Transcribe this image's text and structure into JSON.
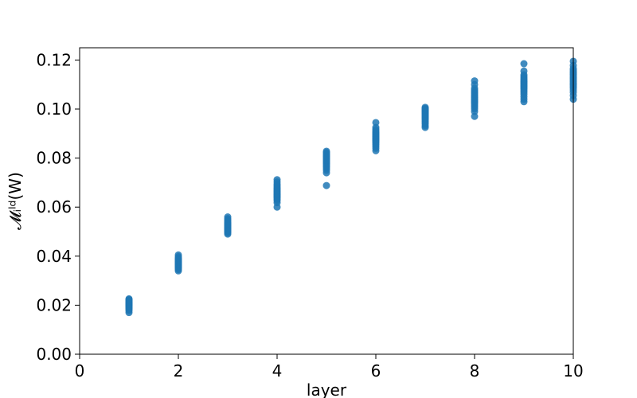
{
  "chart_data": {
    "type": "scatter",
    "title": "",
    "xlabel": "layer",
    "ylabel": "𝓜ᵢˡᵈ(W)",
    "xlim": [
      0,
      10
    ],
    "ylim": [
      0,
      0.125
    ],
    "xticks": [
      0,
      2,
      4,
      6,
      8,
      10
    ],
    "xtick_labels": [
      "0",
      "2",
      "4",
      "6",
      "8",
      "10"
    ],
    "yticks": [
      0.0,
      0.02,
      0.04,
      0.06,
      0.08,
      0.1,
      0.12
    ],
    "ytick_labels": [
      "0.00",
      "0.02",
      "0.04",
      "0.06",
      "0.08",
      "0.10",
      "0.12"
    ],
    "grid": false,
    "marker_color": "#1f77b4",
    "series": [
      {
        "x": [
          1,
          1,
          1,
          1,
          1,
          1,
          1,
          1,
          1,
          1,
          1,
          1,
          1,
          1,
          1,
          1,
          1,
          1,
          1,
          1,
          2,
          2,
          2,
          2,
          2,
          2,
          2,
          2,
          2,
          2,
          2,
          2,
          2,
          2,
          2,
          2,
          2,
          2,
          2,
          2,
          3,
          3,
          3,
          3,
          3,
          3,
          3,
          3,
          3,
          3,
          3,
          3,
          3,
          3,
          3,
          3,
          3,
          3,
          3,
          3,
          4,
          4,
          4,
          4,
          4,
          4,
          4,
          4,
          4,
          4,
          4,
          4,
          4,
          4,
          4,
          4,
          4,
          4,
          4,
          4,
          5,
          5,
          5,
          5,
          5,
          5,
          5,
          5,
          5,
          5,
          5,
          5,
          5,
          5,
          5,
          5,
          5,
          5,
          5,
          5,
          6,
          6,
          6,
          6,
          6,
          6,
          6,
          6,
          6,
          6,
          6,
          6,
          6,
          6,
          6,
          6,
          6,
          6,
          6,
          6,
          7,
          7,
          7,
          7,
          7,
          7,
          7,
          7,
          7,
          7,
          7,
          7,
          7,
          7,
          7,
          7,
          7,
          7,
          7,
          7,
          8,
          8,
          8,
          8,
          8,
          8,
          8,
          8,
          8,
          8,
          8,
          8,
          8,
          8,
          8,
          8,
          8,
          8,
          8,
          8,
          9,
          9,
          9,
          9,
          9,
          9,
          9,
          9,
          9,
          9,
          9,
          9,
          9,
          9,
          9,
          9,
          9,
          9,
          9,
          9,
          10,
          10,
          10,
          10,
          10,
          10,
          10,
          10,
          10,
          10,
          10,
          10,
          10,
          10,
          10,
          10,
          10,
          10,
          10,
          10
        ],
        "y": [
          0.017,
          0.0178,
          0.0183,
          0.0187,
          0.019,
          0.0193,
          0.0196,
          0.0199,
          0.0201,
          0.0203,
          0.0205,
          0.0207,
          0.0209,
          0.0211,
          0.0213,
          0.0215,
          0.0218,
          0.022,
          0.0223,
          0.0226,
          0.034,
          0.0345,
          0.035,
          0.0353,
          0.0356,
          0.0359,
          0.0362,
          0.0365,
          0.0367,
          0.037,
          0.0372,
          0.0375,
          0.0377,
          0.038,
          0.0383,
          0.0386,
          0.0389,
          0.0393,
          0.0398,
          0.0405,
          0.049,
          0.0495,
          0.0499,
          0.0502,
          0.0505,
          0.0508,
          0.0511,
          0.0514,
          0.0517,
          0.052,
          0.0523,
          0.0526,
          0.0529,
          0.0532,
          0.0535,
          0.0539,
          0.0543,
          0.0548,
          0.0553,
          0.056,
          0.06,
          0.0618,
          0.0627,
          0.0632,
          0.0637,
          0.0641,
          0.0645,
          0.0649,
          0.0652,
          0.0656,
          0.066,
          0.0664,
          0.0668,
          0.0672,
          0.0677,
          0.0682,
          0.0688,
          0.0695,
          0.0703,
          0.0712,
          0.0688,
          0.074,
          0.075,
          0.0757,
          0.0763,
          0.0768,
          0.0773,
          0.0777,
          0.0781,
          0.0785,
          0.0789,
          0.0793,
          0.0797,
          0.0801,
          0.0805,
          0.0809,
          0.0813,
          0.0818,
          0.0823,
          0.0828,
          0.083,
          0.084,
          0.0848,
          0.0855,
          0.0861,
          0.0866,
          0.087,
          0.0874,
          0.0878,
          0.0882,
          0.0886,
          0.089,
          0.0894,
          0.0898,
          0.0902,
          0.0906,
          0.0911,
          0.0917,
          0.0925,
          0.0945,
          0.0925,
          0.0932,
          0.0939,
          0.0945,
          0.095,
          0.0955,
          0.096,
          0.0964,
          0.0968,
          0.0972,
          0.0976,
          0.098,
          0.0983,
          0.0987,
          0.099,
          0.0994,
          0.0997,
          0.1,
          0.1003,
          0.1007,
          0.097,
          0.099,
          0.1,
          0.1008,
          0.1015,
          0.1021,
          0.1027,
          0.1032,
          0.1037,
          0.1042,
          0.1047,
          0.1052,
          0.1057,
          0.1062,
          0.1067,
          0.1072,
          0.1078,
          0.1085,
          0.11,
          0.1115,
          0.103,
          0.104,
          0.105,
          0.106,
          0.1068,
          0.1075,
          0.1081,
          0.1087,
          0.1092,
          0.1097,
          0.1102,
          0.1107,
          0.1112,
          0.1117,
          0.1122,
          0.1127,
          0.1133,
          0.114,
          0.1155,
          0.1185,
          0.104,
          0.1055,
          0.1068,
          0.1078,
          0.1086,
          0.1093,
          0.1099,
          0.1105,
          0.1111,
          0.1117,
          0.1123,
          0.1129,
          0.1135,
          0.1141,
          0.1147,
          0.1153,
          0.1159,
          0.1166,
          0.1178,
          0.1195
        ]
      }
    ]
  }
}
